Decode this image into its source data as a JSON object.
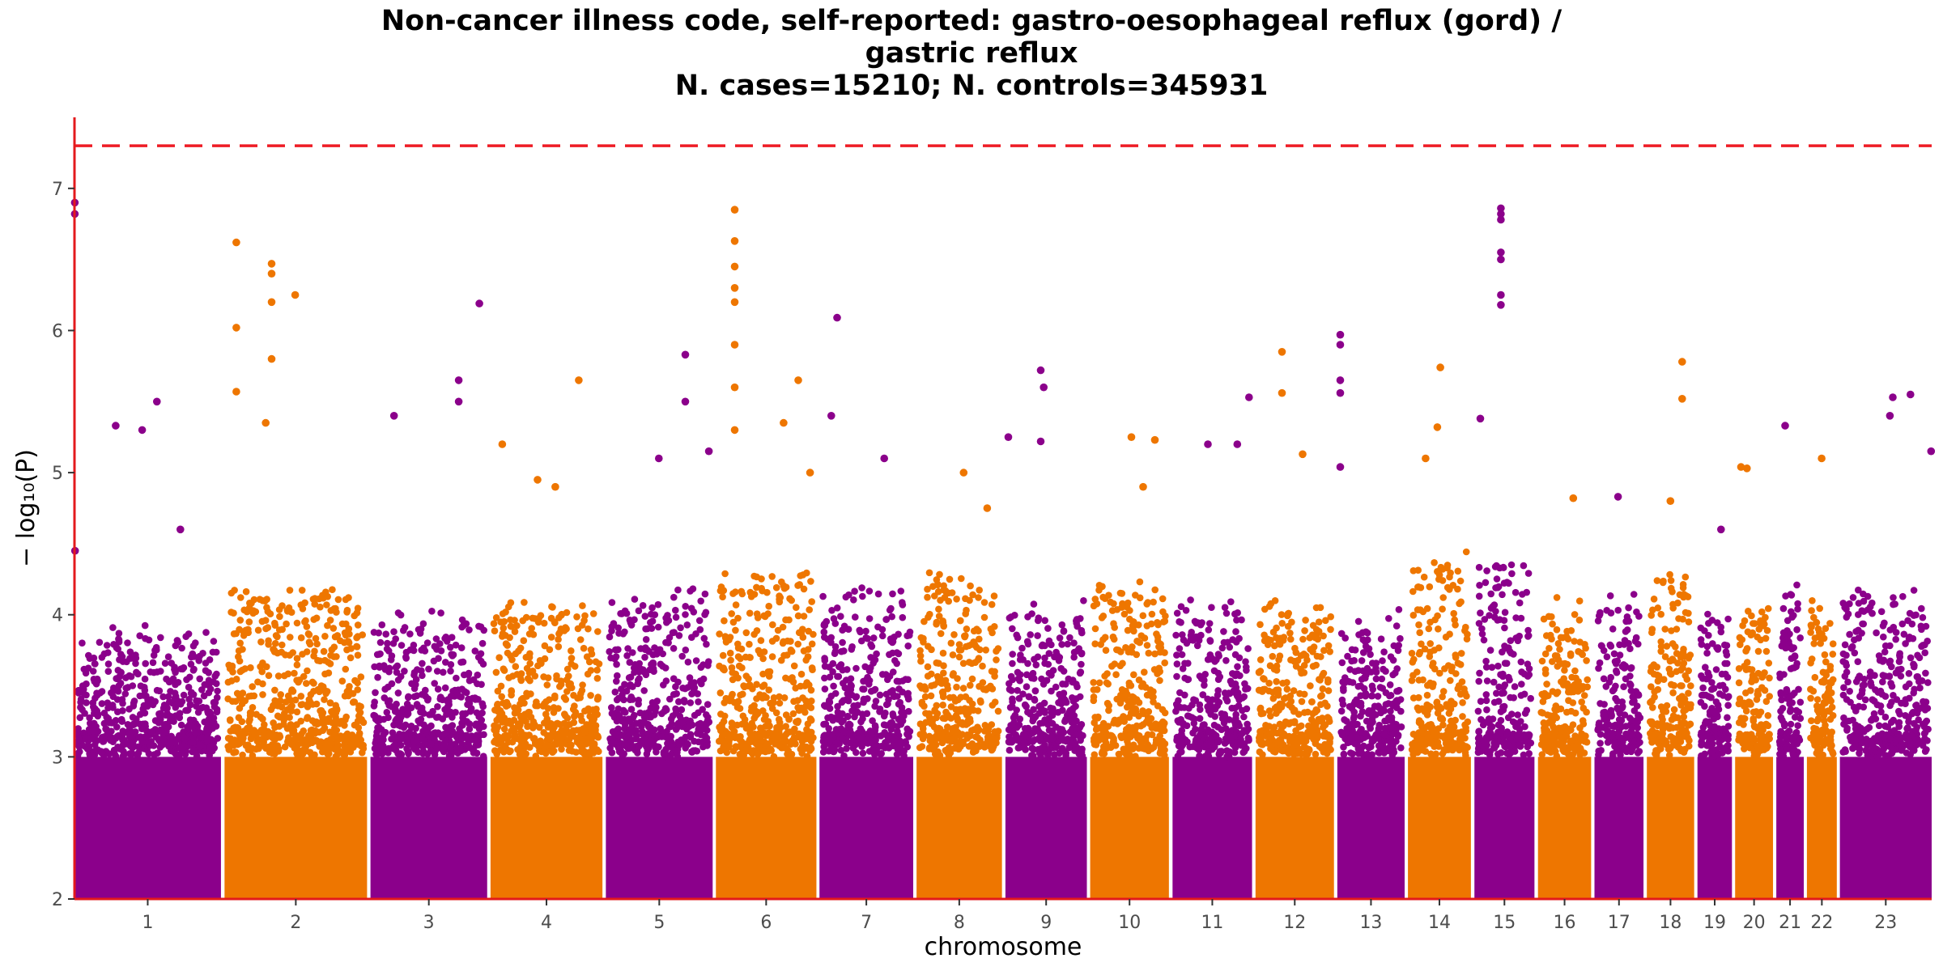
{
  "title_lines": [
    "Non-cancer illness code, self-reported: gastro-oesophageal reflux (gord) /",
    "gastric reflux",
    "N. cases=15210; N. controls=345931"
  ],
  "chart_data": {
    "type": "scatter",
    "xlabel": "chromosome",
    "ylabel": "− log₁₀(P)",
    "ylim": [
      2,
      7.5
    ],
    "yticks": [
      2,
      3,
      4,
      5,
      6,
      7
    ],
    "threshold": 7.3,
    "threshold_color": "#ee1c25",
    "axis_color": "#e31a1c",
    "colors": [
      "#8b008b",
      "#ee7600"
    ],
    "chromosomes": [
      {
        "label": "1",
        "start": 0,
        "end": 248.9,
        "base": 3.8,
        "hits": [
          [
            0.5,
            6.9
          ],
          [
            0.5,
            6.82
          ],
          [
            1,
            4.45
          ],
          [
            70,
            5.33
          ],
          [
            115,
            5.3
          ],
          [
            140,
            5.5
          ],
          [
            180,
            4.6
          ]
        ]
      },
      {
        "label": "2",
        "start": 255,
        "end": 497.2,
        "base": 4.1,
        "hits": [
          [
            20,
            6.62
          ],
          [
            20,
            6.02
          ],
          [
            20,
            5.57
          ],
          [
            80,
            6.47
          ],
          [
            80,
            6.4
          ],
          [
            80,
            6.2
          ],
          [
            80,
            5.8
          ],
          [
            120,
            6.25
          ],
          [
            70,
            5.35
          ]
        ]
      },
      {
        "label": "3",
        "start": 503,
        "end": 701.3,
        "base": 3.9,
        "hits": [
          [
            150,
            5.65
          ],
          [
            150,
            5.5
          ],
          [
            185,
            6.19
          ],
          [
            40,
            5.4
          ]
        ]
      },
      {
        "label": "4",
        "start": 707,
        "end": 897.2,
        "base": 4.0,
        "hits": [
          [
            20,
            5.2
          ],
          [
            150,
            5.65
          ],
          [
            80,
            4.95
          ],
          [
            110,
            4.9
          ]
        ]
      },
      {
        "label": "5",
        "start": 903,
        "end": 1084.5,
        "base": 4.1,
        "hits": [
          [
            135,
            5.83
          ],
          [
            135,
            5.5
          ],
          [
            90,
            5.1
          ],
          [
            175,
            5.15
          ]
        ]
      },
      {
        "label": "6",
        "start": 1090,
        "end": 1260.8,
        "base": 4.2,
        "hits": [
          [
            32,
            6.85
          ],
          [
            32,
            6.63
          ],
          [
            32,
            6.45
          ],
          [
            32,
            6.3
          ],
          [
            32,
            6.2
          ],
          [
            32,
            5.9
          ],
          [
            32,
            5.6
          ],
          [
            32,
            5.3
          ],
          [
            140,
            5.65
          ],
          [
            115,
            5.35
          ],
          [
            160,
            5.0
          ]
        ]
      },
      {
        "label": "7",
        "start": 1266,
        "end": 1425.3,
        "base": 4.1,
        "hits": [
          [
            30,
            6.09
          ],
          [
            20,
            5.4
          ],
          [
            110,
            5.1
          ]
        ]
      },
      {
        "label": "8",
        "start": 1431,
        "end": 1576.1,
        "base": 4.2,
        "hits": [
          [
            80,
            5.0
          ],
          [
            120,
            4.75
          ]
        ]
      },
      {
        "label": "9",
        "start": 1582,
        "end": 1720.4,
        "base": 4.0,
        "hits": [
          [
            60,
            5.72
          ],
          [
            65,
            5.6
          ],
          [
            60,
            5.22
          ],
          [
            5,
            5.25
          ]
        ]
      },
      {
        "label": "10",
        "start": 1726,
        "end": 1859.8,
        "base": 4.1,
        "hits": [
          [
            70,
            5.25
          ],
          [
            110,
            5.23
          ],
          [
            90,
            4.9
          ]
        ]
      },
      {
        "label": "11",
        "start": 1866,
        "end": 2001.1,
        "base": 4.0,
        "hits": [
          [
            110,
            5.2
          ],
          [
            60,
            5.2
          ],
          [
            130,
            5.53
          ]
        ]
      },
      {
        "label": "12",
        "start": 2007,
        "end": 2140.3,
        "base": 4.0,
        "hits": [
          [
            45,
            5.85
          ],
          [
            45,
            5.56
          ],
          [
            80,
            5.13
          ]
        ]
      },
      {
        "label": "13",
        "start": 2146,
        "end": 2260.4,
        "base": 3.9,
        "hits": [
          [
            5,
            5.97
          ],
          [
            5,
            5.9
          ],
          [
            5,
            5.65
          ],
          [
            5,
            5.56
          ],
          [
            5,
            5.04
          ]
        ]
      },
      {
        "label": "14",
        "start": 2266,
        "end": 2373.0,
        "base": 4.3,
        "hits": [
          [
            55,
            5.74
          ],
          [
            50,
            5.32
          ],
          [
            30,
            5.1
          ]
        ]
      },
      {
        "label": "15",
        "start": 2379,
        "end": 2481.0,
        "base": 4.3,
        "hits": [
          [
            45,
            6.86
          ],
          [
            45,
            6.82
          ],
          [
            45,
            6.78
          ],
          [
            45,
            6.55
          ],
          [
            45,
            6.5
          ],
          [
            45,
            6.25
          ],
          [
            45,
            6.18
          ],
          [
            10,
            5.38
          ]
        ]
      },
      {
        "label": "16",
        "start": 2487,
        "end": 2577.3,
        "base": 4.0,
        "hits": [
          [
            60,
            4.82
          ]
        ]
      },
      {
        "label": "17",
        "start": 2583,
        "end": 2666.3,
        "base": 4.0,
        "hits": [
          [
            40,
            4.83
          ]
        ]
      },
      {
        "label": "18",
        "start": 2672,
        "end": 2752.4,
        "base": 4.2,
        "hits": [
          [
            60,
            5.78
          ],
          [
            60,
            5.52
          ],
          [
            40,
            4.8
          ]
        ]
      },
      {
        "label": "19",
        "start": 2758,
        "end": 2816.6,
        "base": 3.9,
        "hits": [
          [
            40,
            4.6
          ]
        ]
      },
      {
        "label": "20",
        "start": 2822,
        "end": 2886.4,
        "base": 4.0,
        "hits": [
          [
            10,
            5.04
          ],
          [
            20,
            5.03
          ]
        ]
      },
      {
        "label": "21",
        "start": 2892,
        "end": 2938.7,
        "base": 4.1,
        "hits": [
          [
            15,
            5.33
          ]
        ]
      },
      {
        "label": "22",
        "start": 2944,
        "end": 2994.8,
        "base": 4.0,
        "hits": [
          [
            25,
            5.1
          ]
        ]
      },
      {
        "label": "23",
        "start": 3000,
        "end": 3156.0,
        "base": 4.1,
        "hits": [
          [
            120,
            5.55
          ],
          [
            90,
            5.53
          ],
          [
            85,
            5.4
          ],
          [
            155,
            5.15
          ]
        ]
      }
    ]
  }
}
